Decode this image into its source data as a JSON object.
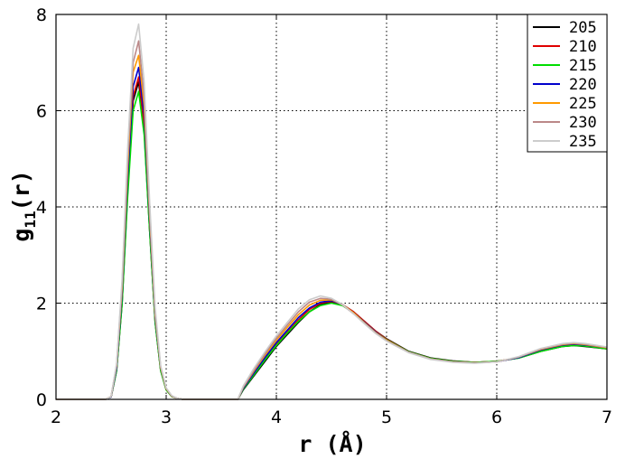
{
  "chart_data": {
    "type": "line",
    "title": "",
    "xlabel": "r (Å)",
    "ylabel": {
      "main": "g",
      "sub": "11",
      "suffix": "(r)"
    },
    "xlim": [
      2,
      7
    ],
    "ylim": [
      0,
      8
    ],
    "xticks": [
      2,
      3,
      4,
      5,
      6,
      7
    ],
    "yticks": [
      0,
      2,
      4,
      6,
      8
    ],
    "grid": true,
    "legend_position": "top-right",
    "x": [
      2.0,
      2.45,
      2.5,
      2.55,
      2.6,
      2.65,
      2.7,
      2.75,
      2.8,
      2.85,
      2.9,
      2.95,
      3.0,
      3.05,
      3.1,
      3.15,
      3.2,
      3.3,
      3.5,
      3.65,
      3.7,
      3.8,
      3.9,
      4.0,
      4.1,
      4.2,
      4.3,
      4.4,
      4.5,
      4.6,
      4.7,
      4.8,
      4.9,
      5.0,
      5.2,
      5.4,
      5.6,
      5.8,
      6.0,
      6.2,
      6.4,
      6.6,
      6.7,
      6.8,
      7.0
    ],
    "series": [
      {
        "name": "205",
        "color": "#000000",
        "values": [
          0,
          0,
          0.05,
          0.6,
          2.0,
          4.3,
          6.2,
          6.6,
          5.6,
          3.5,
          1.6,
          0.6,
          0.2,
          0.06,
          0.02,
          0,
          0,
          0,
          0,
          0,
          0.2,
          0.5,
          0.8,
          1.1,
          1.35,
          1.6,
          1.82,
          1.97,
          2.02,
          1.97,
          1.82,
          1.62,
          1.42,
          1.26,
          1.0,
          0.86,
          0.8,
          0.77,
          0.79,
          0.86,
          1.0,
          1.1,
          1.12,
          1.1,
          1.05
        ]
      },
      {
        "name": "210",
        "color": "#e00000",
        "values": [
          0,
          0,
          0.05,
          0.62,
          2.1,
          4.4,
          6.3,
          6.7,
          5.7,
          3.6,
          1.65,
          0.62,
          0.21,
          0.06,
          0.02,
          0,
          0,
          0,
          0,
          0,
          0.22,
          0.54,
          0.85,
          1.15,
          1.4,
          1.65,
          1.87,
          2.0,
          2.04,
          1.97,
          1.82,
          1.62,
          1.42,
          1.25,
          0.99,
          0.85,
          0.79,
          0.77,
          0.79,
          0.87,
          1.02,
          1.12,
          1.14,
          1.12,
          1.06
        ]
      },
      {
        "name": "215",
        "color": "#00dd00",
        "values": [
          0,
          0,
          0.05,
          0.6,
          2.0,
          4.2,
          6.0,
          6.4,
          5.5,
          3.5,
          1.6,
          0.6,
          0.2,
          0.06,
          0.02,
          0,
          0,
          0,
          0,
          0,
          0.21,
          0.52,
          0.83,
          1.12,
          1.38,
          1.62,
          1.82,
          1.95,
          2.0,
          1.95,
          1.8,
          1.6,
          1.4,
          1.24,
          0.99,
          0.85,
          0.79,
          0.77,
          0.79,
          0.86,
          1.0,
          1.1,
          1.12,
          1.11,
          1.05
        ]
      },
      {
        "name": "220",
        "color": "#0000cc",
        "values": [
          0,
          0,
          0.05,
          0.65,
          2.2,
          4.6,
          6.5,
          6.9,
          5.9,
          3.7,
          1.7,
          0.65,
          0.22,
          0.07,
          0.02,
          0,
          0,
          0,
          0,
          0,
          0.23,
          0.56,
          0.88,
          1.18,
          1.44,
          1.7,
          1.9,
          2.02,
          2.05,
          1.97,
          1.8,
          1.6,
          1.4,
          1.23,
          0.98,
          0.84,
          0.78,
          0.76,
          0.78,
          0.87,
          1.03,
          1.13,
          1.15,
          1.13,
          1.07
        ]
      },
      {
        "name": "225",
        "color": "#ff9900",
        "values": [
          0,
          0,
          0.06,
          0.7,
          2.3,
          4.8,
          6.8,
          7.15,
          6.1,
          3.8,
          1.75,
          0.66,
          0.22,
          0.07,
          0.02,
          0,
          0,
          0,
          0,
          0,
          0.25,
          0.6,
          0.93,
          1.23,
          1.5,
          1.76,
          1.96,
          2.06,
          2.07,
          1.97,
          1.8,
          1.59,
          1.39,
          1.23,
          0.98,
          0.84,
          0.78,
          0.76,
          0.78,
          0.88,
          1.04,
          1.14,
          1.16,
          1.14,
          1.07
        ]
      },
      {
        "name": "230",
        "color": "#bb8888",
        "values": [
          0,
          0,
          0.06,
          0.72,
          2.4,
          5.0,
          7.0,
          7.45,
          6.3,
          3.9,
          1.8,
          0.68,
          0.23,
          0.07,
          0.02,
          0,
          0,
          0,
          0,
          0,
          0.26,
          0.62,
          0.96,
          1.27,
          1.55,
          1.82,
          2.02,
          2.1,
          2.08,
          1.96,
          1.78,
          1.58,
          1.38,
          1.22,
          0.98,
          0.84,
          0.78,
          0.76,
          0.78,
          0.88,
          1.05,
          1.15,
          1.17,
          1.15,
          1.08
        ]
      },
      {
        "name": "235",
        "color": "#cccccc",
        "values": [
          0,
          0,
          0.06,
          0.75,
          2.5,
          5.2,
          7.3,
          7.8,
          6.6,
          4.1,
          1.9,
          0.7,
          0.24,
          0.08,
          0.02,
          0,
          0,
          0,
          0,
          0,
          0.28,
          0.66,
          1.0,
          1.32,
          1.6,
          1.88,
          2.07,
          2.15,
          2.1,
          1.97,
          1.78,
          1.57,
          1.37,
          1.21,
          0.97,
          0.83,
          0.77,
          0.75,
          0.78,
          0.89,
          1.06,
          1.16,
          1.18,
          1.16,
          1.09
        ]
      }
    ]
  }
}
